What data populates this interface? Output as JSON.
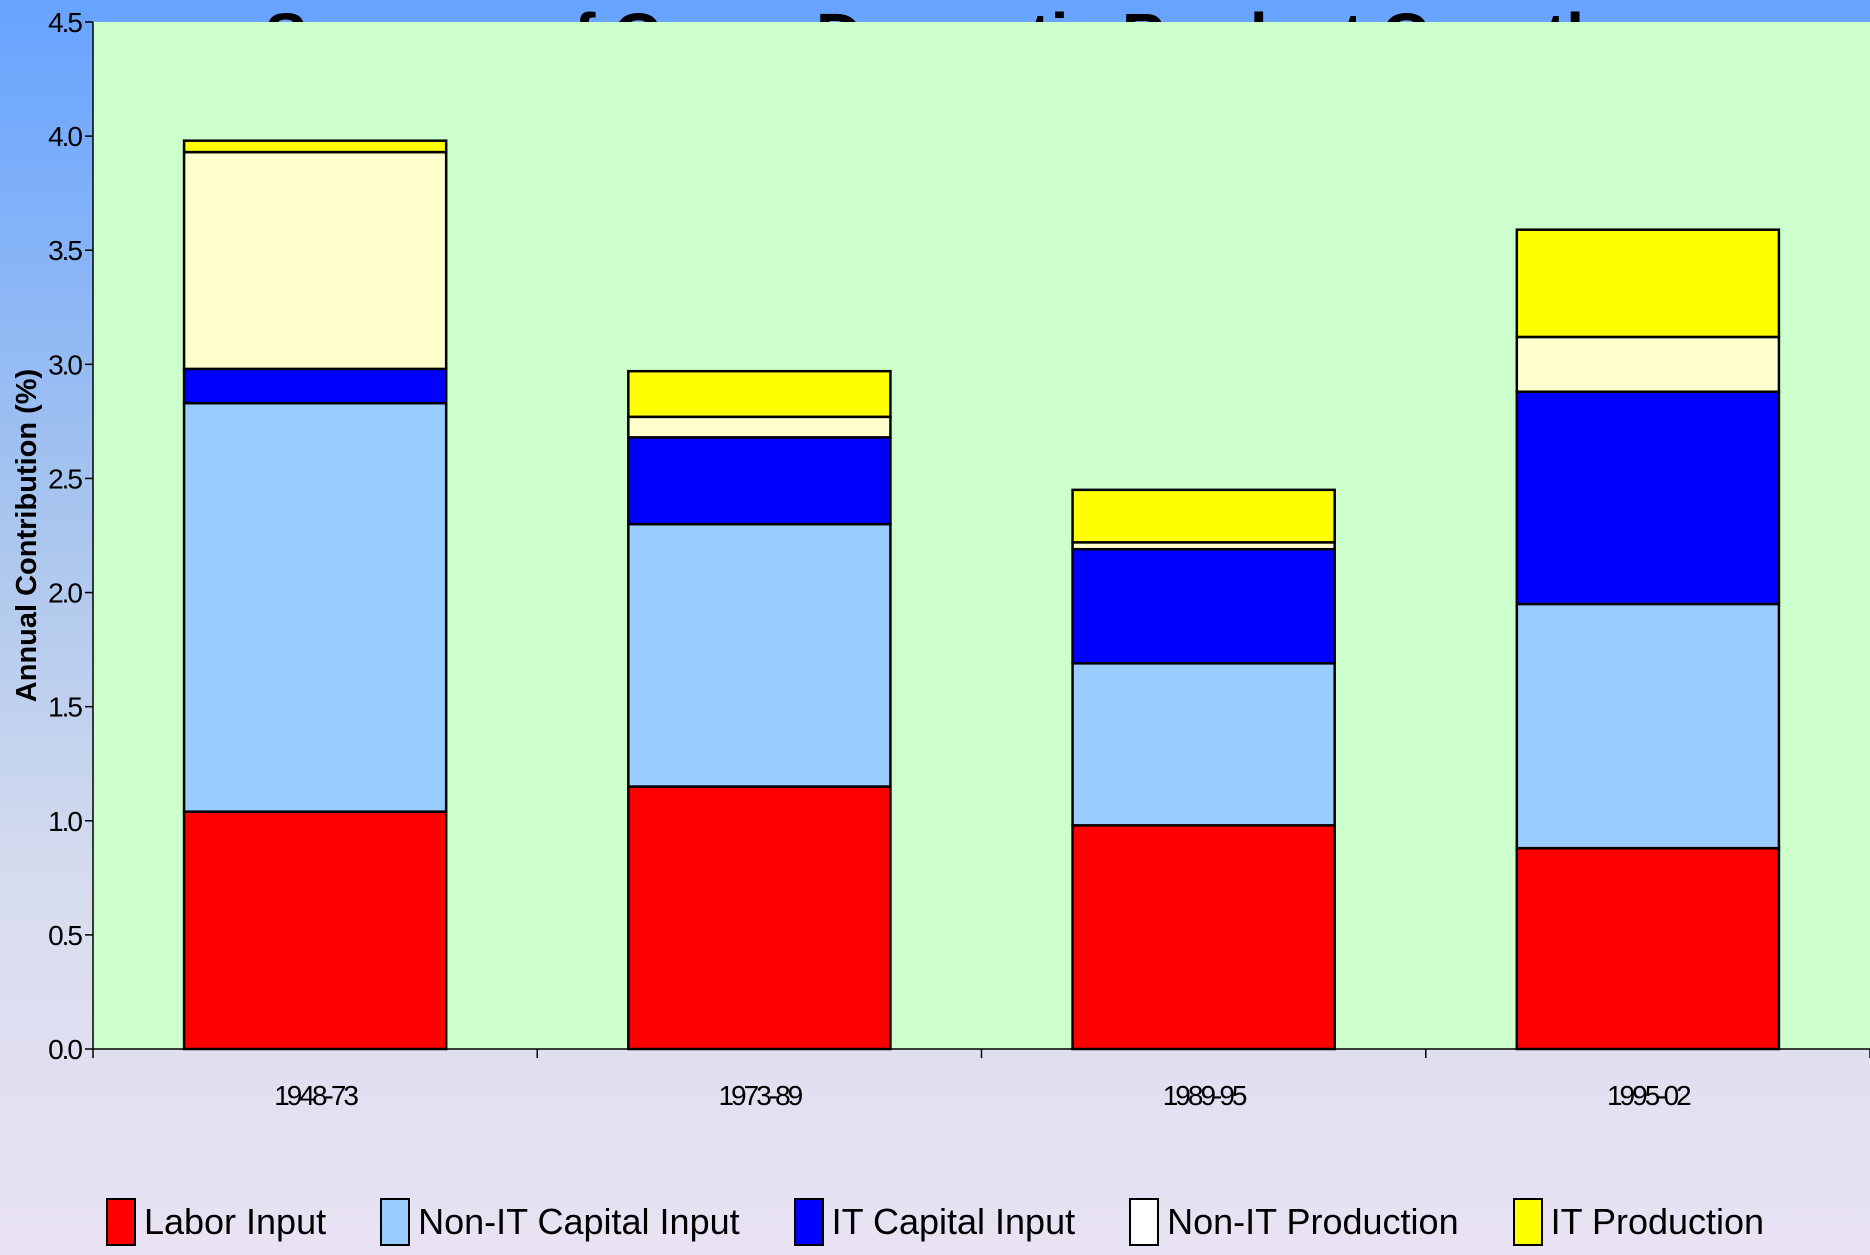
{
  "chart_data": {
    "type": "bar",
    "stacked": true,
    "title": "Sources of Gross Domestic Product Growth",
    "xlabel": "",
    "ylabel": "Annual Contribution (%)",
    "ylim": [
      0,
      4.5
    ],
    "yticks": [
      "0.0",
      "0.5",
      "1.0",
      "1.5",
      "2.0",
      "2.5",
      "3.0",
      "3.5",
      "4.0",
      "4.5"
    ],
    "categories": [
      "1948-73",
      "1973-89",
      "1989-95",
      "1995-02"
    ],
    "series": [
      {
        "name": "Labor Input",
        "color": "#ff0000",
        "values": [
          1.04,
          1.15,
          0.98,
          0.88
        ]
      },
      {
        "name": "Non-IT Capital Input",
        "color": "#99ccff",
        "values": [
          1.79,
          1.15,
          0.71,
          1.07
        ]
      },
      {
        "name": "IT Capital Input",
        "color": "#0000ff",
        "values": [
          0.15,
          0.38,
          0.5,
          0.93
        ]
      },
      {
        "name": "Non-IT Production",
        "color": "#ffffcc",
        "values": [
          0.95,
          0.09,
          0.03,
          0.24
        ]
      },
      {
        "name": "IT Production",
        "color": "#ffff00",
        "values": [
          0.05,
          0.2,
          0.23,
          0.47
        ]
      }
    ],
    "grid": false,
    "legend_position": "bottom",
    "plot_background": "#ccffcc"
  }
}
